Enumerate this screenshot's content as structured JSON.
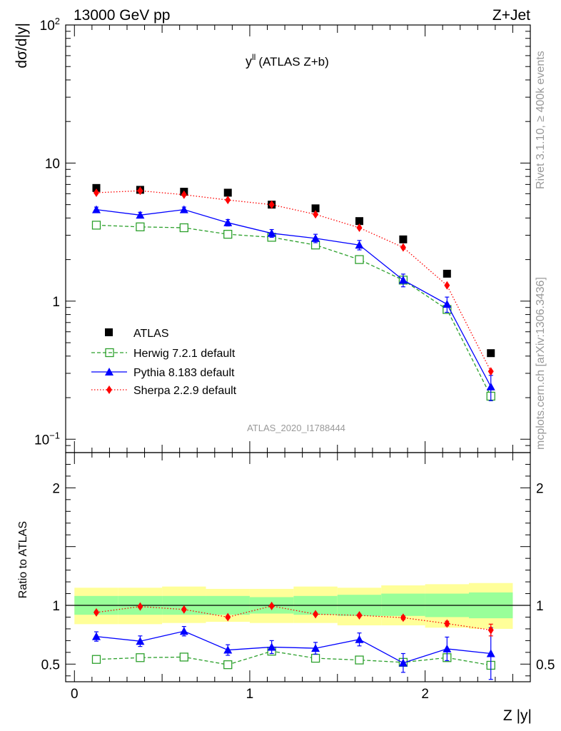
{
  "header": {
    "left": "13000 GeV pp",
    "right": "Z+Jet"
  },
  "side_labels": {
    "rivet": "Rivet 3.1.10, ≥ 400k events",
    "mcplots": "mcplots.cern.ch [arXiv:1306.3436]"
  },
  "watermark": "ATLAS_2020_I1788444",
  "colors": {
    "atlas": "#000000",
    "herwig": "#2ca02c",
    "pythia": "#0000ff",
    "sherpa": "#ff0000",
    "band_inner": "#99ff99",
    "band_outer": "#ffff99"
  },
  "chart_data": [
    {
      "type": "line",
      "panel": "main",
      "title": "y^{ll} (ATLAS Z+b)",
      "title_main": "y",
      "title_sup": "ll",
      "title_rest": "(ATLAS Z+b)",
      "ylabel": "dσ/d|y|",
      "yscale": "log",
      "ylim": [
        0.08,
        100
      ],
      "xlim": [
        -0.05,
        2.6
      ],
      "yticks": [
        {
          "value": 100,
          "label": "10",
          "sup": "2"
        },
        {
          "value": 10,
          "label": "10",
          "sup": ""
        },
        {
          "value": 1,
          "label": "1",
          "sup": ""
        },
        {
          "value": 0.1,
          "label": "10",
          "sup": "−1"
        }
      ],
      "bin_edges": [
        0,
        0.25,
        0.5,
        0.75,
        1.0,
        1.25,
        1.5,
        1.75,
        2.0,
        2.25,
        2.5
      ],
      "x": [
        0.125,
        0.375,
        0.625,
        0.875,
        1.125,
        1.375,
        1.625,
        1.875,
        2.125,
        2.375
      ],
      "legend": {
        "position": "bottom-left",
        "entries": [
          "ATLAS",
          "Herwig 7.2.1 default",
          "Pythia 8.183 default",
          "Sherpa 2.2.9 default"
        ]
      },
      "series": [
        {
          "name": "ATLAS",
          "style": "square",
          "values": [
            6.6,
            6.4,
            6.2,
            6.1,
            5.0,
            4.7,
            3.8,
            2.8,
            1.58,
            0.42
          ]
        },
        {
          "name": "Herwig 7.2.1 default",
          "style": "open-square-dashed",
          "values": [
            3.55,
            3.45,
            3.4,
            3.05,
            2.9,
            2.55,
            2.0,
            1.42,
            0.87,
            0.205
          ]
        },
        {
          "name": "Pythia 8.183 default",
          "style": "triangle-solid",
          "values": [
            4.6,
            4.2,
            4.6,
            3.7,
            3.1,
            2.85,
            2.55,
            1.42,
            0.95,
            0.24
          ],
          "errors": [
            0.2,
            0.2,
            0.2,
            0.2,
            0.2,
            0.2,
            0.2,
            0.15,
            0.12,
            0.05
          ]
        },
        {
          "name": "Sherpa 2.2.9 default",
          "style": "diamond-dotted",
          "values": [
            6.1,
            6.3,
            5.9,
            5.4,
            5.0,
            4.25,
            3.4,
            2.45,
            1.3,
            0.31
          ]
        }
      ]
    },
    {
      "type": "line",
      "panel": "ratio",
      "ylabel": "Ratio to ATLAS",
      "xlabel": "Z |y|",
      "ylim": [
        0.35,
        2.3
      ],
      "xlim": [
        -0.05,
        2.6
      ],
      "yticks": [
        0.5,
        1,
        2
      ],
      "yticklabels": [
        "0.5",
        "1",
        "2"
      ],
      "xticks": [
        0,
        1,
        2
      ],
      "xticklabels": [
        "0",
        "1",
        "2"
      ],
      "reference_line": 1,
      "bands": {
        "outer_lo": [
          0.84,
          0.84,
          0.85,
          0.86,
          0.85,
          0.85,
          0.83,
          0.83,
          0.81,
          0.8
        ],
        "outer_hi": [
          1.15,
          1.15,
          1.16,
          1.14,
          1.14,
          1.16,
          1.15,
          1.17,
          1.18,
          1.19
        ],
        "inner_lo": [
          0.92,
          0.92,
          0.92,
          0.92,
          0.93,
          0.92,
          0.91,
          0.91,
          0.9,
          0.89
        ],
        "inner_hi": [
          1.08,
          1.08,
          1.08,
          1.08,
          1.07,
          1.08,
          1.09,
          1.1,
          1.1,
          1.11
        ]
      },
      "series": [
        {
          "name": "Herwig 7.2.1 default",
          "values": [
            0.54,
            0.555,
            0.56,
            0.495,
            0.61,
            0.55,
            0.535,
            0.515,
            0.555,
            0.49
          ],
          "errors": [
            0.01,
            0.01,
            0.01,
            0.01,
            0.015,
            0.01,
            0.01,
            0.01,
            0.015,
            0.02
          ]
        },
        {
          "name": "Pythia 8.183 default",
          "values": [
            0.735,
            0.695,
            0.78,
            0.62,
            0.645,
            0.635,
            0.71,
            0.51,
            0.63,
            0.59
          ],
          "errors": [
            0.04,
            0.045,
            0.04,
            0.045,
            0.055,
            0.05,
            0.055,
            0.08,
            0.1,
            0.22
          ]
        },
        {
          "name": "Sherpa 2.2.9 default",
          "values": [
            0.94,
            0.99,
            0.965,
            0.9,
            0.995,
            0.925,
            0.915,
            0.895,
            0.845,
            0.79
          ],
          "errors": [
            0.01,
            0.01,
            0.01,
            0.01,
            0.01,
            0.01,
            0.01,
            0.015,
            0.02,
            0.05
          ]
        }
      ]
    }
  ]
}
